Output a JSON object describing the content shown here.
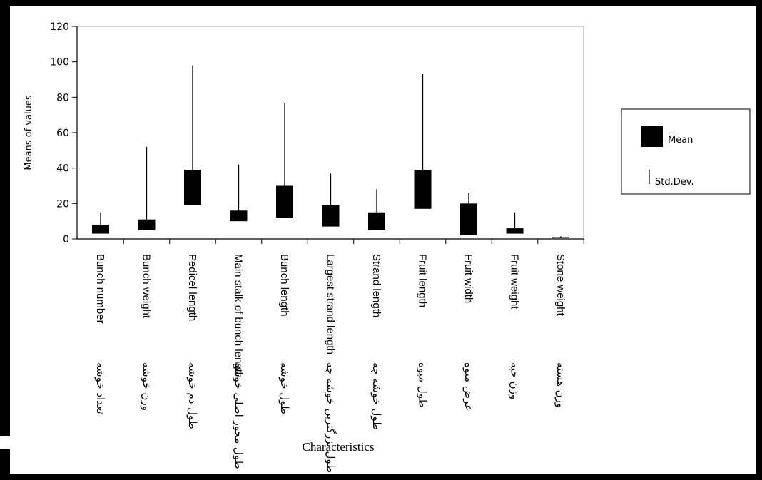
{
  "chart_data": {
    "type": "box",
    "title": "",
    "xlabel": "Characteristics",
    "ylabel": "Means of values",
    "ylim": [
      0,
      120
    ],
    "yticks": [
      0,
      20,
      40,
      60,
      80,
      100,
      120
    ],
    "grid": false,
    "legend_position": "right",
    "legend": [
      {
        "symbol": "box",
        "label": "Mean"
      },
      {
        "symbol": "line",
        "label": "Std.Dev."
      }
    ],
    "categories": [
      {
        "en": "Bunch number",
        "fa": "تعداد خوشه",
        "box_low": 3,
        "box_high": 8,
        "whisker_high": 15
      },
      {
        "en": "Bunch weight",
        "fa": "وزن خوشه",
        "box_low": 5,
        "box_high": 11,
        "whisker_high": 52
      },
      {
        "en": "Pedicel length",
        "fa": "طول دم خوشه",
        "box_low": 19,
        "box_high": 39,
        "whisker_high": 98
      },
      {
        "en": "Main stalk of bunch length",
        "fa": "طول محور اصلی خوشه",
        "box_low": 10,
        "box_high": 16,
        "whisker_high": 42
      },
      {
        "en": "Bunch length",
        "fa": "طول خوشه",
        "box_low": 12,
        "box_high": 30,
        "whisker_high": 77
      },
      {
        "en": "Largest strand length",
        "fa": "طول بزرگترین خوشه چه",
        "box_low": 7,
        "box_high": 19,
        "whisker_high": 37
      },
      {
        "en": "Strand length",
        "fa": "طول خوشه چه",
        "box_low": 5,
        "box_high": 15,
        "whisker_high": 28
      },
      {
        "en": "Fruit length",
        "fa": "طول میوه",
        "box_low": 17,
        "box_high": 39,
        "whisker_high": 93
      },
      {
        "en": "Fruit width",
        "fa": "عرض میوه",
        "box_low": 2,
        "box_high": 20,
        "whisker_high": 26
      },
      {
        "en": "Fruit weight",
        "fa": "وزن حبه",
        "box_low": 3,
        "box_high": 6,
        "whisker_high": 15
      },
      {
        "en": "Stone weight",
        "fa": "وزن هسته",
        "box_low": 0.5,
        "box_high": 1,
        "whisker_high": 1.5
      }
    ]
  }
}
